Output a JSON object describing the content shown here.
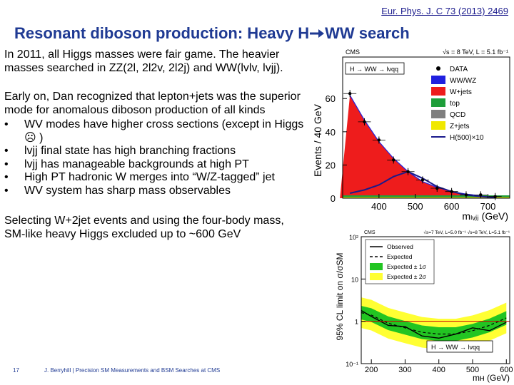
{
  "reference": "Eur. Phys. J. C 73 (2013) 2469",
  "title": "Resonant diboson production:  Heavy H",
  "title_suffix": "WW search",
  "paragraphs": [
    "In 2011, all Higgs masses were fair game.  The heavier masses searched in ZZ(2l, 2l2v, 2l2j) and WW(lvlv, lvjj).",
    "Early on, Dan recognized that lepton+jets was the superior mode for anomalous diboson production of all kinds"
  ],
  "bullets": [
    "WV modes have higher cross sections (except in Higgs ☹ )",
    "lvjj final state has high branching fractions",
    "lvjj has manageable backgrounds at high PT",
    "High PT hadronic W merges into “W/Z-tagged” jet",
    "WV system has sharp mass observables"
  ],
  "conclusion": "Selecting W+2jet events and using the four-body mass, SM-like heavy Higgs excluded up to ~600 GeV",
  "footer": {
    "page": "17",
    "author": "J. Berryhill | Precision SM Measurements and BSM Searches at CMS"
  },
  "chart_data": [
    {
      "type": "area",
      "cms_label": "CMS",
      "energy_label": "√s = 8 TeV, L = 5.1 fb⁻¹",
      "channel_label": "H → WW → lνqq",
      "ylabel": "Events / 40 GeV",
      "xlabel": "mₗᵥⱼⱼ (GeV)",
      "xticks": [
        400,
        500,
        600,
        700
      ],
      "yticks": [
        0,
        20,
        40,
        60
      ],
      "xlim": [
        300,
        760
      ],
      "ylim": [
        0,
        85
      ],
      "legend": [
        "DATA",
        "WW/WZ",
        "W+jets",
        "top",
        "QCD",
        "Z+jets",
        "H(500)×10"
      ],
      "colors": {
        "wjets": "#ee1c1c",
        "wwwz": "#2020e0",
        "top": "#1e9e3a",
        "zjets": "#f0e800",
        "signal": "#1a1a8c",
        "qcd": "#7f7f7f"
      },
      "mass": [
        320,
        360,
        400,
        440,
        480,
        520,
        560,
        600,
        640,
        680,
        720
      ],
      "background_total": [
        62,
        47,
        34,
        24,
        16,
        10,
        6.5,
        4.0,
        2.5,
        1.5,
        0.9
      ],
      "data": [
        63,
        46,
        35,
        23,
        16,
        11,
        6,
        4,
        2,
        2,
        1
      ],
      "signal_x10": [
        3,
        5,
        8,
        13,
        16,
        12,
        7,
        4,
        2,
        1,
        0.5
      ]
    },
    {
      "type": "line",
      "cms_label": "CMS",
      "energy_label": "√s=7 TeV, L=5.0 fb⁻¹   √s=8 TeV, L=5.1 fb⁻¹",
      "channel_label": "H → WW → lνqq",
      "ylabel": "95% CL limit on σ/σSM",
      "xlabel": "mʜ (GeV)",
      "xticks": [
        200,
        300,
        400,
        500,
        600
      ],
      "yticks": [
        "10⁻¹",
        "1",
        "10",
        "10²"
      ],
      "xlim": [
        170,
        610
      ],
      "log_y": true,
      "ylim": [
        0.1,
        100
      ],
      "legend": [
        "Observed",
        "Expected",
        "Expected ± 1σ",
        "Expected ± 2σ"
      ],
      "colors": {
        "one_sigma": "#22c522",
        "two_sigma": "#ffff33",
        "expected": "#000000",
        "observed": "#000000"
      },
      "mass": [
        170,
        200,
        250,
        300,
        350,
        400,
        450,
        500,
        550,
        600
      ],
      "expected": [
        1.6,
        1.4,
        0.9,
        0.7,
        0.55,
        0.5,
        0.5,
        0.6,
        0.8,
        1.2
      ],
      "observed": [
        1.8,
        1.3,
        0.8,
        0.75,
        0.45,
        0.4,
        0.5,
        0.7,
        0.6,
        0.95
      ]
    }
  ]
}
